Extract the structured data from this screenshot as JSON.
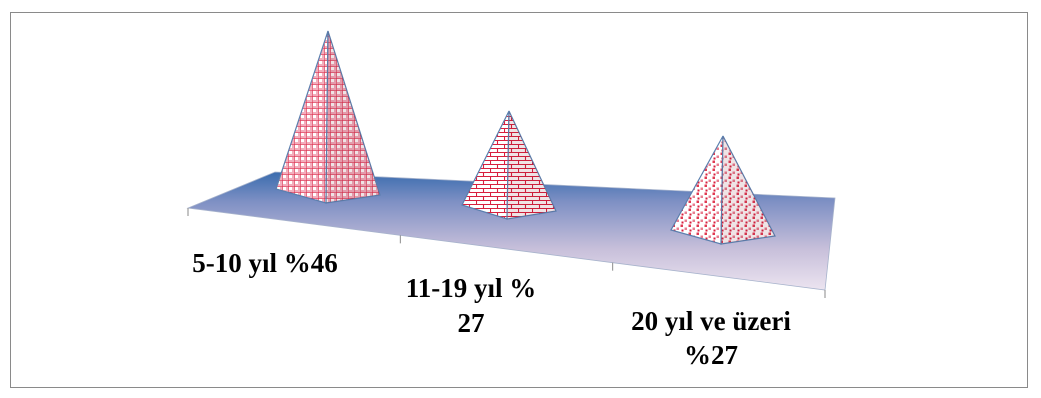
{
  "chart_data": {
    "type": "bar",
    "style": "3d-pyramid",
    "title": "",
    "xlabel": "",
    "ylabel": "",
    "categories": [
      "5-10 yıl  %46",
      "11-19 yıl  % 27",
      "20 yıl ve üzeri %27"
    ],
    "series": [
      {
        "values": [
          46,
          27,
          27
        ]
      }
    ],
    "grid": false,
    "legend": "none",
    "colors": {
      "floor_dark": "#3a6cae",
      "floor_light": "#e8e0ee",
      "pyramid_fill": "#f3aebd",
      "pyramid_pattern": "#d81f3e",
      "pyramid_edge": "#5a7fae"
    }
  }
}
